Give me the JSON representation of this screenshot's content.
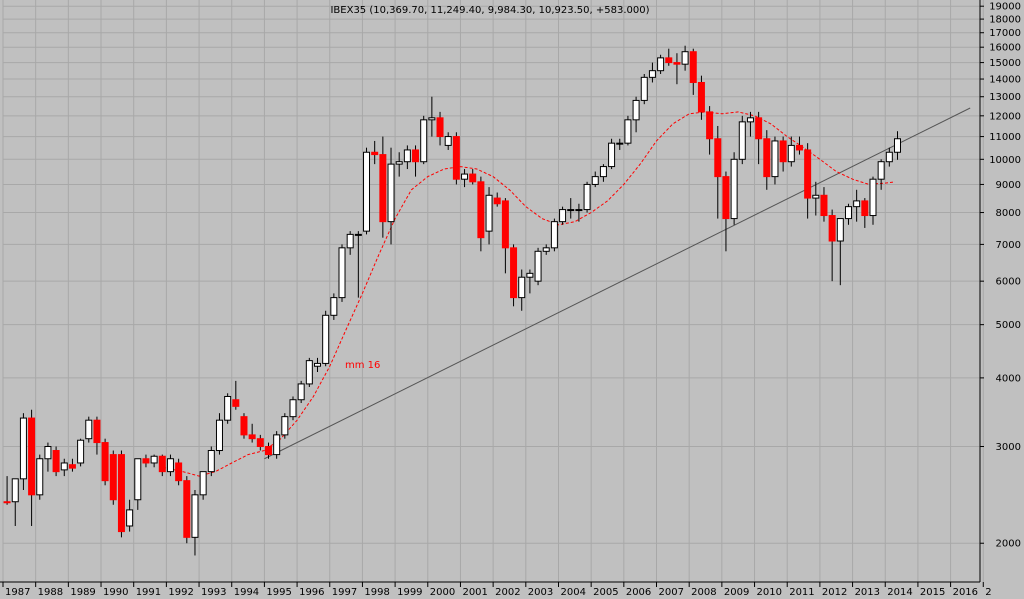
{
  "chart_data": {
    "type": "candlestick",
    "title": "IBEX35 (10,369.70, 11,249.40, 9,984.30, 10,923.50, +583.000)",
    "annotation": "mm 16",
    "y_scale": "log",
    "ylim": [
      1700,
      19500
    ],
    "xlim": [
      1987.0,
      2016.9
    ],
    "y_ticks": [
      2000,
      3000,
      4000,
      5000,
      6000,
      7000,
      8000,
      9000,
      10000,
      11000,
      12000,
      13000,
      14000,
      15000,
      16000,
      17000,
      18000,
      19000
    ],
    "x_ticks": [
      "1987",
      "1988",
      "1989",
      "1990",
      "1991",
      "1992",
      "1993",
      "1994",
      "1995",
      "1996",
      "1997",
      "1998",
      "1999",
      "2000",
      "2001",
      "2002",
      "2003",
      "2004",
      "2005",
      "2006",
      "2007",
      "2008",
      "2009",
      "2010",
      "2011",
      "2012",
      "2013",
      "2014",
      "2015",
      "2016",
      "2"
    ],
    "colors": {
      "background": "#c0c0c0",
      "up": "#ffffff",
      "down": "#ff0000",
      "wick": "#000000",
      "ma": "#ff0000",
      "trendline": "#555555"
    },
    "candles": [
      {
        "t": 1987.0,
        "o": 2380,
        "h": 2650,
        "l": 2350,
        "c": 2370
      },
      {
        "t": 1987.25,
        "o": 2380,
        "h": 2600,
        "l": 2150,
        "c": 2620
      },
      {
        "t": 1987.5,
        "o": 2620,
        "h": 3450,
        "l": 2500,
        "c": 3380
      },
      {
        "t": 1987.75,
        "o": 3380,
        "h": 3500,
        "l": 2150,
        "c": 2450
      },
      {
        "t": 1988.0,
        "o": 2450,
        "h": 2900,
        "l": 2400,
        "c": 2850
      },
      {
        "t": 1988.25,
        "o": 2850,
        "h": 3050,
        "l": 2700,
        "c": 3000
      },
      {
        "t": 1988.5,
        "o": 2950,
        "h": 3000,
        "l": 2650,
        "c": 2700
      },
      {
        "t": 1988.75,
        "o": 2720,
        "h": 2850,
        "l": 2650,
        "c": 2800
      },
      {
        "t": 1989.0,
        "o": 2780,
        "h": 2850,
        "l": 2700,
        "c": 2740
      },
      {
        "t": 1989.25,
        "o": 2800,
        "h": 3100,
        "l": 2760,
        "c": 3080
      },
      {
        "t": 1989.5,
        "o": 3100,
        "h": 3400,
        "l": 3050,
        "c": 3350
      },
      {
        "t": 1989.75,
        "o": 3350,
        "h": 3400,
        "l": 2900,
        "c": 3050
      },
      {
        "t": 1990.0,
        "o": 3050,
        "h": 3100,
        "l": 2550,
        "c": 2600
      },
      {
        "t": 1990.25,
        "o": 2900,
        "h": 2950,
        "l": 2350,
        "c": 2400
      },
      {
        "t": 1990.5,
        "o": 2900,
        "h": 2950,
        "l": 2050,
        "c": 2100
      },
      {
        "t": 1990.75,
        "o": 2150,
        "h": 2400,
        "l": 2100,
        "c": 2300
      },
      {
        "t": 1991.0,
        "o": 2400,
        "h": 2850,
        "l": 2300,
        "c": 2850
      },
      {
        "t": 1991.25,
        "o": 2850,
        "h": 2900,
        "l": 2750,
        "c": 2800
      },
      {
        "t": 1991.5,
        "o": 2800,
        "h": 2900,
        "l": 2750,
        "c": 2880
      },
      {
        "t": 1991.75,
        "o": 2880,
        "h": 2900,
        "l": 2650,
        "c": 2700
      },
      {
        "t": 1992.0,
        "o": 2700,
        "h": 2900,
        "l": 2650,
        "c": 2850
      },
      {
        "t": 1992.25,
        "o": 2800,
        "h": 2850,
        "l": 2550,
        "c": 2600
      },
      {
        "t": 1992.5,
        "o": 2600,
        "h": 2650,
        "l": 2000,
        "c": 2050
      },
      {
        "t": 1992.75,
        "o": 2050,
        "h": 2500,
        "l": 1900,
        "c": 2450
      },
      {
        "t": 1993.0,
        "o": 2450,
        "h": 2700,
        "l": 2400,
        "c": 2700
      },
      {
        "t": 1993.25,
        "o": 2700,
        "h": 3000,
        "l": 2650,
        "c": 2950
      },
      {
        "t": 1993.5,
        "o": 2950,
        "h": 3450,
        "l": 2900,
        "c": 3350
      },
      {
        "t": 1993.75,
        "o": 3350,
        "h": 3750,
        "l": 3300,
        "c": 3700
      },
      {
        "t": 1994.0,
        "o": 3650,
        "h": 3950,
        "l": 3500,
        "c": 3550
      },
      {
        "t": 1994.25,
        "o": 3400,
        "h": 3450,
        "l": 3100,
        "c": 3150
      },
      {
        "t": 1994.5,
        "o": 3150,
        "h": 3300,
        "l": 3050,
        "c": 3100
      },
      {
        "t": 1994.75,
        "o": 3100,
        "h": 3150,
        "l": 2950,
        "c": 3000
      },
      {
        "t": 1995.0,
        "o": 3000,
        "h": 3050,
        "l": 2850,
        "c": 2900
      },
      {
        "t": 1995.25,
        "o": 2900,
        "h": 3200,
        "l": 2850,
        "c": 3150
      },
      {
        "t": 1995.5,
        "o": 3150,
        "h": 3450,
        "l": 3100,
        "c": 3400
      },
      {
        "t": 1995.75,
        "o": 3400,
        "h": 3700,
        "l": 3350,
        "c": 3650
      },
      {
        "t": 1996.0,
        "o": 3650,
        "h": 3950,
        "l": 3600,
        "c": 3900
      },
      {
        "t": 1996.25,
        "o": 3900,
        "h": 4350,
        "l": 3850,
        "c": 4300
      },
      {
        "t": 1996.5,
        "o": 4200,
        "h": 4350,
        "l": 4100,
        "c": 4250
      },
      {
        "t": 1996.75,
        "o": 4250,
        "h": 5300,
        "l": 4200,
        "c": 5200
      },
      {
        "t": 1997.0,
        "o": 5200,
        "h": 5700,
        "l": 5100,
        "c": 5600
      },
      {
        "t": 1997.25,
        "o": 5600,
        "h": 7000,
        "l": 5500,
        "c": 6900
      },
      {
        "t": 1997.5,
        "o": 6900,
        "h": 7400,
        "l": 6700,
        "c": 7300
      },
      {
        "t": 1997.75,
        "o": 7300,
        "h": 7400,
        "l": 5600,
        "c": 7300
      },
      {
        "t": 1998.0,
        "o": 7400,
        "h": 10500,
        "l": 7300,
        "c": 10300
      },
      {
        "t": 1998.25,
        "o": 10300,
        "h": 10800,
        "l": 9800,
        "c": 10200
      },
      {
        "t": 1998.5,
        "o": 10200,
        "h": 11000,
        "l": 7200,
        "c": 7700
      },
      {
        "t": 1998.75,
        "o": 7700,
        "h": 10500,
        "l": 7000,
        "c": 9800
      },
      {
        "t": 1999.0,
        "o": 9800,
        "h": 10300,
        "l": 9300,
        "c": 9900
      },
      {
        "t": 1999.25,
        "o": 9900,
        "h": 10600,
        "l": 9600,
        "c": 10400
      },
      {
        "t": 1999.5,
        "o": 10400,
        "h": 10600,
        "l": 9300,
        "c": 9900
      },
      {
        "t": 1999.75,
        "o": 9900,
        "h": 12000,
        "l": 9800,
        "c": 11800
      },
      {
        "t": 2000.0,
        "o": 11800,
        "h": 13000,
        "l": 11000,
        "c": 11900
      },
      {
        "t": 2000.25,
        "o": 11900,
        "h": 12200,
        "l": 10600,
        "c": 11000
      },
      {
        "t": 2000.5,
        "o": 10600,
        "h": 11200,
        "l": 10400,
        "c": 11000
      },
      {
        "t": 2000.75,
        "o": 11000,
        "h": 11200,
        "l": 9000,
        "c": 9200
      },
      {
        "t": 2001.0,
        "o": 9200,
        "h": 9600,
        "l": 8900,
        "c": 9400
      },
      {
        "t": 2001.25,
        "o": 9400,
        "h": 9600,
        "l": 9000,
        "c": 9100
      },
      {
        "t": 2001.5,
        "o": 9100,
        "h": 9300,
        "l": 6800,
        "c": 7200
      },
      {
        "t": 2001.75,
        "o": 7400,
        "h": 8900,
        "l": 7000,
        "c": 8600
      },
      {
        "t": 2002.0,
        "o": 8500,
        "h": 8700,
        "l": 8200,
        "c": 8300
      },
      {
        "t": 2002.25,
        "o": 8400,
        "h": 8500,
        "l": 6200,
        "c": 6900
      },
      {
        "t": 2002.5,
        "o": 6900,
        "h": 7000,
        "l": 5400,
        "c": 5600
      },
      {
        "t": 2002.75,
        "o": 5600,
        "h": 6300,
        "l": 5300,
        "c": 6100
      },
      {
        "t": 2003.0,
        "o": 6100,
        "h": 6300,
        "l": 5700,
        "c": 6200
      },
      {
        "t": 2003.25,
        "o": 6000,
        "h": 6900,
        "l": 5900,
        "c": 6800
      },
      {
        "t": 2003.5,
        "o": 6800,
        "h": 7000,
        "l": 6700,
        "c": 6900
      },
      {
        "t": 2003.75,
        "o": 6900,
        "h": 7800,
        "l": 6800,
        "c": 7700
      },
      {
        "t": 2004.0,
        "o": 7700,
        "h": 8200,
        "l": 7600,
        "c": 8100
      },
      {
        "t": 2004.25,
        "o": 8100,
        "h": 8500,
        "l": 7800,
        "c": 8100
      },
      {
        "t": 2004.5,
        "o": 8100,
        "h": 8300,
        "l": 7700,
        "c": 8100
      },
      {
        "t": 2004.75,
        "o": 8100,
        "h": 9100,
        "l": 8000,
        "c": 9000
      },
      {
        "t": 2005.0,
        "o": 9000,
        "h": 9500,
        "l": 8900,
        "c": 9300
      },
      {
        "t": 2005.25,
        "o": 9300,
        "h": 9800,
        "l": 9100,
        "c": 9700
      },
      {
        "t": 2005.5,
        "o": 9700,
        "h": 10900,
        "l": 9600,
        "c": 10700
      },
      {
        "t": 2005.75,
        "o": 10700,
        "h": 10900,
        "l": 10400,
        "c": 10700
      },
      {
        "t": 2006.0,
        "o": 10700,
        "h": 12000,
        "l": 10600,
        "c": 11800
      },
      {
        "t": 2006.25,
        "o": 11800,
        "h": 13000,
        "l": 11200,
        "c": 12800
      },
      {
        "t": 2006.5,
        "o": 12800,
        "h": 14300,
        "l": 12600,
        "c": 14100
      },
      {
        "t": 2006.75,
        "o": 14100,
        "h": 15000,
        "l": 13800,
        "c": 14500
      },
      {
        "t": 2007.0,
        "o": 14500,
        "h": 15500,
        "l": 14300,
        "c": 15300
      },
      {
        "t": 2007.25,
        "o": 15300,
        "h": 15900,
        "l": 14800,
        "c": 15000
      },
      {
        "t": 2007.5,
        "o": 15000,
        "h": 15600,
        "l": 13700,
        "c": 14900
      },
      {
        "t": 2007.75,
        "o": 14900,
        "h": 16100,
        "l": 14500,
        "c": 15700
      },
      {
        "t": 2008.0,
        "o": 15700,
        "h": 15900,
        "l": 13100,
        "c": 13800
      },
      {
        "t": 2008.25,
        "o": 13800,
        "h": 14200,
        "l": 11800,
        "c": 12200
      },
      {
        "t": 2008.5,
        "o": 12200,
        "h": 12500,
        "l": 10200,
        "c": 10900
      },
      {
        "t": 2008.75,
        "o": 10900,
        "h": 11500,
        "l": 7800,
        "c": 9300
      },
      {
        "t": 2009.0,
        "o": 9300,
        "h": 9500,
        "l": 6800,
        "c": 7800
      },
      {
        "t": 2009.25,
        "o": 7800,
        "h": 10300,
        "l": 7600,
        "c": 10000
      },
      {
        "t": 2009.5,
        "o": 10000,
        "h": 12000,
        "l": 9800,
        "c": 11700
      },
      {
        "t": 2009.75,
        "o": 11700,
        "h": 12200,
        "l": 11000,
        "c": 11900
      },
      {
        "t": 2010.0,
        "o": 11900,
        "h": 12200,
        "l": 9800,
        "c": 10900
      },
      {
        "t": 2010.25,
        "o": 10900,
        "h": 11300,
        "l": 8800,
        "c": 9300
      },
      {
        "t": 2010.5,
        "o": 9300,
        "h": 11000,
        "l": 9000,
        "c": 10800
      },
      {
        "t": 2010.75,
        "o": 10800,
        "h": 11000,
        "l": 9500,
        "c": 9900
      },
      {
        "t": 2011.0,
        "o": 9900,
        "h": 11000,
        "l": 9700,
        "c": 10600
      },
      {
        "t": 2011.25,
        "o": 10600,
        "h": 11000,
        "l": 10200,
        "c": 10400
      },
      {
        "t": 2011.5,
        "o": 10400,
        "h": 10700,
        "l": 7800,
        "c": 8500
      },
      {
        "t": 2011.75,
        "o": 8500,
        "h": 9100,
        "l": 7900,
        "c": 8600
      },
      {
        "t": 2012.0,
        "o": 8600,
        "h": 8900,
        "l": 7700,
        "c": 7900
      },
      {
        "t": 2012.25,
        "o": 7900,
        "h": 8100,
        "l": 6000,
        "c": 7100
      },
      {
        "t": 2012.5,
        "o": 7100,
        "h": 7800,
        "l": 5900,
        "c": 7800
      },
      {
        "t": 2012.75,
        "o": 7800,
        "h": 8300,
        "l": 7600,
        "c": 8200
      },
      {
        "t": 2013.0,
        "o": 8200,
        "h": 8800,
        "l": 7700,
        "c": 8400
      },
      {
        "t": 2013.25,
        "o": 8400,
        "h": 8500,
        "l": 7500,
        "c": 7900
      },
      {
        "t": 2013.5,
        "o": 7900,
        "h": 9300,
        "l": 7600,
        "c": 9200
      },
      {
        "t": 2013.75,
        "o": 9200,
        "h": 10000,
        "l": 8800,
        "c": 9900
      },
      {
        "t": 2014.0,
        "o": 9900,
        "h": 10500,
        "l": 9700,
        "c": 10300
      },
      {
        "t": 2014.25,
        "o": 10300,
        "h": 11250,
        "l": 9980,
        "c": 10900
      }
    ],
    "moving_average": {
      "name": "mm 16",
      "t": [
        1991.9,
        1992.5,
        1993.0,
        1993.5,
        1994.0,
        1994.5,
        1995.0,
        1995.5,
        1996.0,
        1996.5,
        1997.0,
        1997.5,
        1998.0,
        1998.5,
        1999.0,
        1999.5,
        2000.0,
        2000.5,
        2001.0,
        2001.5,
        2002.0,
        2002.5,
        2003.0,
        2003.5,
        2004.0,
        2004.5,
        2005.0,
        2005.5,
        2006.0,
        2006.5,
        2007.0,
        2007.5,
        2008.0,
        2008.5,
        2009.0,
        2009.5,
        2010.0,
        2010.5,
        2011.0,
        2011.5,
        2012.0,
        2012.5,
        2013.0,
        2013.5,
        2014.0,
        2014.3
      ],
      "v": [
        2750,
        2700,
        2650,
        2700,
        2800,
        2900,
        2950,
        3100,
        3350,
        3700,
        4200,
        4900,
        5700,
        6700,
        7800,
        8800,
        9300,
        9600,
        9700,
        9600,
        9300,
        8800,
        8200,
        7800,
        7600,
        7700,
        8000,
        8400,
        9000,
        9800,
        10800,
        11600,
        12100,
        12200,
        12100,
        12200,
        12000,
        11600,
        11000,
        10500,
        10000,
        9500,
        9200,
        9000,
        9050,
        9100
      ]
    },
    "trendline": {
      "from": {
        "t": 1995.0,
        "v": 2850
      },
      "to": {
        "t": 2016.6,
        "v": 12400
      }
    }
  }
}
